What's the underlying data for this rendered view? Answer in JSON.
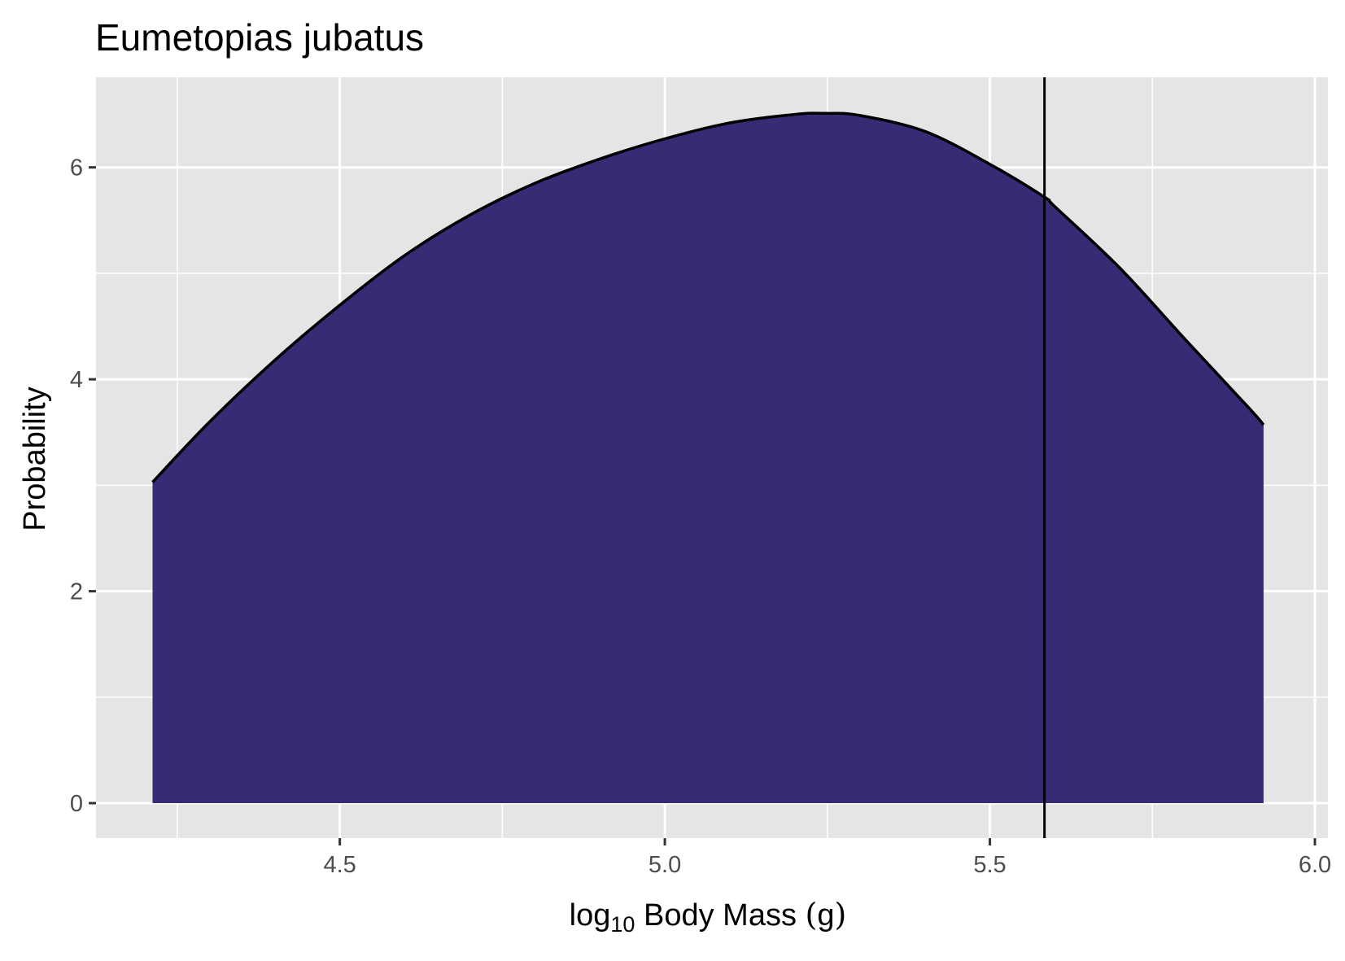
{
  "chart_data": {
    "type": "area",
    "title": "Eumetopias jubatus",
    "xlabel": "log10 Body Mass (g)",
    "xlabel_base": "log",
    "xlabel_sub": "10",
    "xlabel_rest": " Body Mass ",
    "xlabel_paren_open": "(",
    "xlabel_unit": "g",
    "xlabel_paren_close": ")",
    "ylabel": "Probability",
    "xlim": [
      4.125,
      6.02
    ],
    "ylim": [
      -0.33,
      6.85
    ],
    "x_ticks": [
      4.5,
      5.0,
      5.5,
      6.0
    ],
    "x_tick_labels": [
      "4.5",
      "5.0",
      "5.5",
      "6.0"
    ],
    "y_ticks": [
      0,
      2,
      4,
      6
    ],
    "y_tick_labels": [
      "0",
      "2",
      "4",
      "6"
    ],
    "x_minor_ticks": [
      4.25,
      4.75,
      5.25,
      5.75
    ],
    "y_minor_ticks": [
      1,
      3,
      5
    ],
    "grid": true,
    "fill_color": "#372b76",
    "line_color": "#000000",
    "panel_background": "#e5e5e5",
    "grid_color": "#ffffff",
    "reference_line": {
      "x": 5.584,
      "color": "#000000"
    },
    "series": [
      {
        "x": [
          4.212,
          4.3,
          4.4,
          4.5,
          4.6,
          4.7,
          4.8,
          4.9,
          5.0,
          5.1,
          5.2,
          5.25,
          5.3,
          5.4,
          5.5,
          5.584,
          5.6,
          5.7,
          5.8,
          5.9,
          5.921
        ],
        "values": [
          3.03,
          3.6,
          4.18,
          4.7,
          5.17,
          5.55,
          5.85,
          6.08,
          6.27,
          6.42,
          6.5,
          6.51,
          6.49,
          6.34,
          6.03,
          5.72,
          5.63,
          5.05,
          4.38,
          3.72,
          3.57
        ]
      }
    ]
  }
}
